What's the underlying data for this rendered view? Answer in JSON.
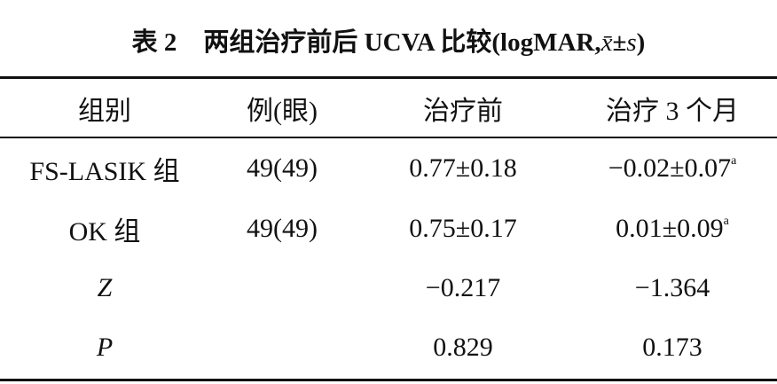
{
  "table": {
    "title": {
      "label": "表 2",
      "parts": [
        "两组治疗前后 UCVA 比较(logMAR,",
        "x̄",
        "±",
        "s",
        ")"
      ]
    },
    "header": [
      "组别",
      "例(眼)",
      "治疗前",
      "治疗 3 个月"
    ],
    "rows": [
      [
        "FS-LASIK 组",
        "49(49)",
        "0.77±0.18",
        {
          "text": "−0.02±0.07",
          "sup": "a"
        }
      ],
      [
        "OK 组",
        "49(49)",
        "0.75±0.17",
        {
          "text": "0.01±0.09",
          "sup": "a"
        }
      ],
      [
        {
          "text": "Z",
          "italic": true
        },
        null,
        "−0.217",
        "−1.364"
      ],
      [
        {
          "text": "P",
          "italic": true
        },
        null,
        "0.829",
        "0.173"
      ]
    ]
  }
}
